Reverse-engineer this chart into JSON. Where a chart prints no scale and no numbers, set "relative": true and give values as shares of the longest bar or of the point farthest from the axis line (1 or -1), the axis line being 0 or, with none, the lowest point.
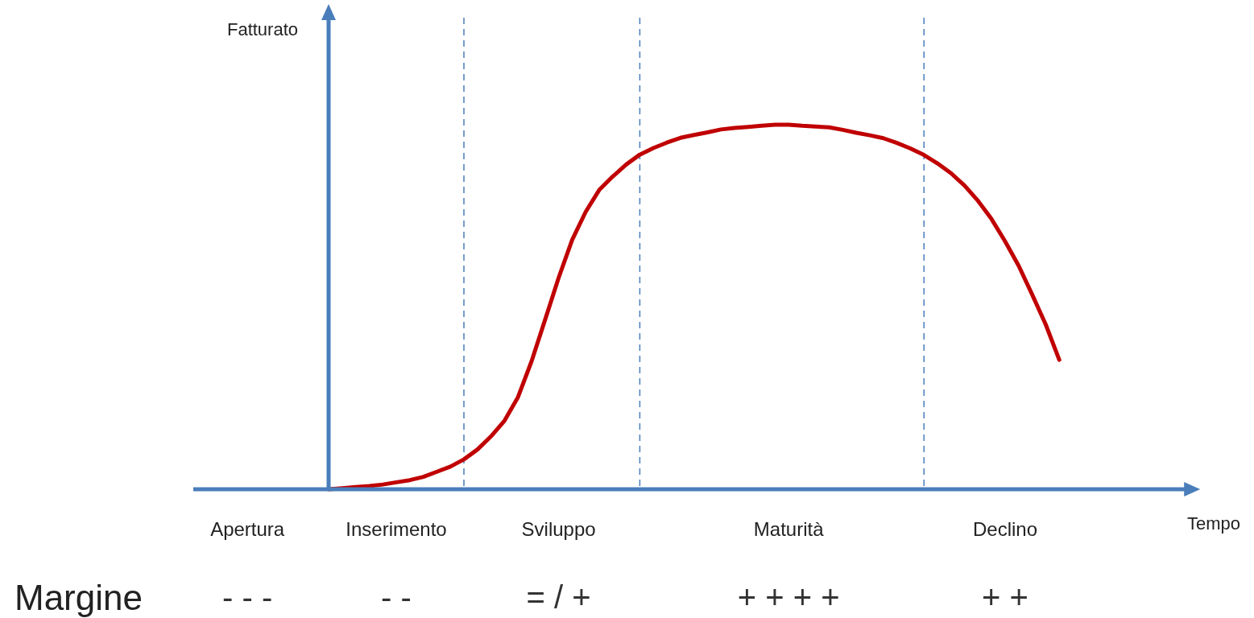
{
  "chart_data": {
    "type": "line",
    "xlabel": "Tempo",
    "ylabel": "Fatturato",
    "relative": true,
    "line_style": "solid",
    "categories": [
      null,
      null,
      null,
      null,
      "Apertura",
      null,
      null,
      null,
      null,
      null,
      null,
      null,
      null,
      null,
      null,
      "Inserimento",
      null,
      null,
      null,
      null,
      null,
      null,
      null,
      null,
      null,
      null,
      null,
      "Sviluppo",
      null,
      null,
      null,
      null,
      null,
      null,
      null,
      null,
      null,
      null,
      null,
      null,
      null,
      null,
      null,
      null,
      "Maturità",
      null,
      null,
      null,
      null,
      null,
      null,
      null,
      null,
      null,
      null,
      null,
      null,
      null,
      null,
      null,
      "Declino",
      null,
      null,
      null,
      null,
      null,
      null,
      null,
      null,
      null,
      null,
      null,
      null,
      null,
      null
    ],
    "series": [
      {
        "color": "#c00000",
        "values": [
          null,
          null,
          null,
          null,
          null,
          null,
          null,
          null,
          null,
          null,
          0,
          0.003,
          0.006,
          0.009,
          0.013,
          0.019,
          0.025,
          0.034,
          0.048,
          0.062,
          0.082,
          0.109,
          0.145,
          0.188,
          0.253,
          0.351,
          0.465,
          0.58,
          0.684,
          0.761,
          0.821,
          0.858,
          0.891,
          0.918,
          0.936,
          0.951,
          0.964,
          0.972,
          0.979,
          0.987,
          0.991,
          0.994,
          0.997,
          1,
          1,
          0.997,
          0.995,
          0.993,
          0.986,
          0.978,
          0.971,
          0.963,
          0.95,
          0.935,
          0.917,
          0.894,
          0.867,
          0.833,
          0.791,
          0.741,
          0.68,
          0.613,
          0.534,
          0.452,
          0.355,
          null,
          null,
          null,
          null,
          null,
          null,
          null,
          null,
          null,
          null
        ]
      }
    ],
    "annotations": [
      "Margine",
      "- - -",
      "- -",
      "= / +",
      "+ + + +",
      "+ +"
    ]
  }
}
